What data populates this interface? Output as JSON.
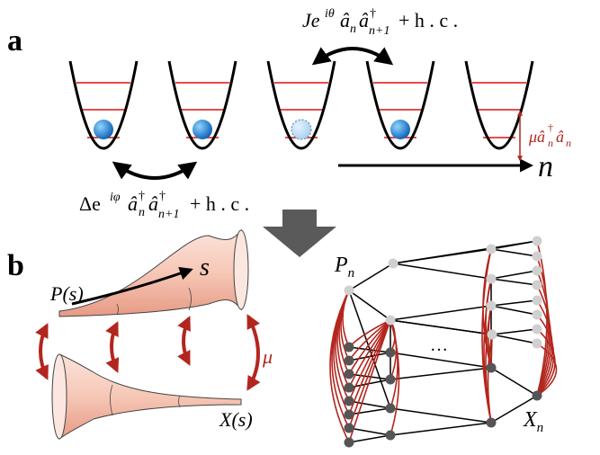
{
  "panel_a": {
    "label": "a",
    "hopping_term": [
      "Je",
      "iθ",
      "â",
      "n",
      "â",
      "†",
      "n+1",
      "+ h . c ."
    ],
    "onsite_term": [
      "μâ",
      "†",
      "n",
      "â",
      "n"
    ],
    "axis_label": "n",
    "pairing_term": [
      "Δe",
      "iφ",
      "â",
      "†",
      "n",
      "â",
      "†",
      "n+1",
      "+ h . c ."
    ]
  },
  "panel_b": {
    "label": "b",
    "p_label": "P(s)",
    "s_label": "s",
    "mu_label": "μ",
    "x_label": "X(s)",
    "pn_label": [
      "P",
      "n"
    ],
    "ellipsis": "…",
    "xn_label": [
      "X",
      "n"
    ]
  }
}
